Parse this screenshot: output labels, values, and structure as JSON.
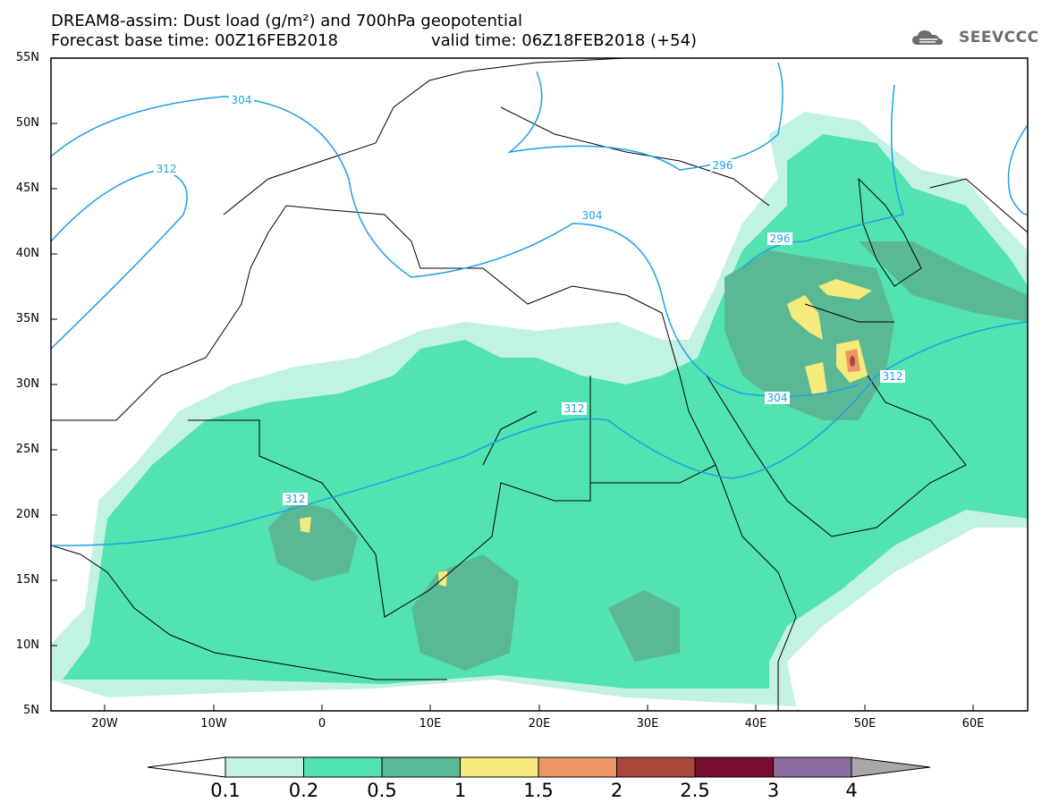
{
  "header": {
    "line1": "DREAM8-assim: Dust load (g/m²) and 700hPa geopotential",
    "line2_left": "Forecast base time: 00Z16FEB2018",
    "line2_right": "valid time: 06Z18FEB2018 (+54)"
  },
  "logo": {
    "text": "SEEVCCC"
  },
  "axes": {
    "lat_labels": [
      "55N",
      "50N",
      "45N",
      "40N",
      "35N",
      "30N",
      "25N",
      "20N",
      "15N",
      "10N",
      "5N"
    ],
    "lon_labels": [
      "20W",
      "10W",
      "0",
      "10E",
      "20E",
      "30E",
      "40E",
      "50E",
      "60E"
    ]
  },
  "contours": {
    "labels": [
      "304",
      "312",
      "296",
      "304",
      "296",
      "312",
      "304",
      "312",
      "312"
    ]
  },
  "colorbar": {
    "labels": [
      "0.1",
      "0.2",
      "0.5",
      "1",
      "1.5",
      "2",
      "2.5",
      "3",
      "4"
    ],
    "colors": [
      "#c2f2e4",
      "#52e3b0",
      "#5ab894",
      "#f5ea7c",
      "#ee9668",
      "#a8483a",
      "#7a0c2e",
      "#8c6ca0",
      "#a8a8a8"
    ]
  }
}
